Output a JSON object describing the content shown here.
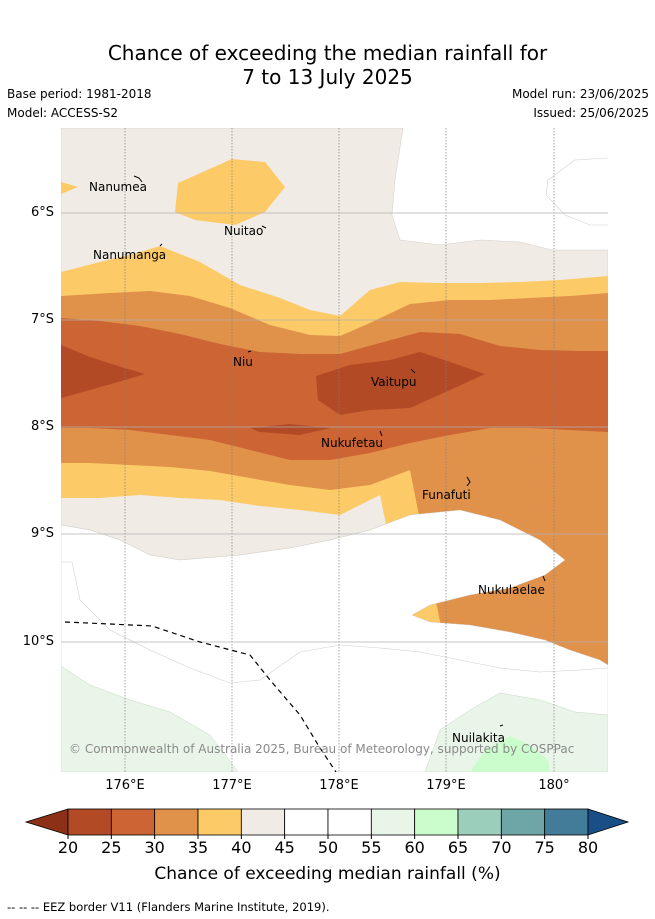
{
  "header": {
    "title_line1": "Chance of exceeding the median rainfall for",
    "title_line2": "7 to 13 July 2025",
    "base_period": "Base period: 1981-2018",
    "model": "Model: ACCESS-S2",
    "model_run": "Model run: 23/06/2025",
    "issued": "Issued: 25/06/2025"
  },
  "map": {
    "lat_labels": [
      "6°S",
      "7°S",
      "8°S",
      "9°S",
      "10°S"
    ],
    "lon_labels": [
      "176°E",
      "177°E",
      "178°E",
      "179°E",
      "180°"
    ],
    "places": [
      {
        "name": "Nanumea"
      },
      {
        "name": "Nuitao"
      },
      {
        "name": "Nanumanga"
      },
      {
        "name": "Niu"
      },
      {
        "name": "Vaitupu"
      },
      {
        "name": "Nukufetau"
      },
      {
        "name": "Funafuti"
      },
      {
        "name": "Nukulaelae"
      },
      {
        "name": "Nuilakita"
      }
    ],
    "copyright": "© Commonwealth of Australia 2025, Bureau of Meteorology, supported by COSPPac"
  },
  "legend": {
    "ticks": [
      "20",
      "25",
      "30",
      "35",
      "40",
      "45",
      "50",
      "55",
      "60",
      "65",
      "70",
      "75",
      "80"
    ],
    "colors": [
      "#b14a25",
      "#cc6533",
      "#e0914a",
      "#fdca68",
      "#f0ebe5",
      "#ffffff",
      "#ffffff",
      "#eaf5e9",
      "#cbfccb",
      "#9ccfbb",
      "#6ea5a6",
      "#437c98"
    ],
    "low_color": "#8c3018",
    "high_color": "#174f86",
    "label": "Chance of exceeding median rainfall (%)"
  },
  "footer": {
    "eez_note": "-- -- -- EEZ border V11 (Flanders Marine Institute, 2019)."
  }
}
